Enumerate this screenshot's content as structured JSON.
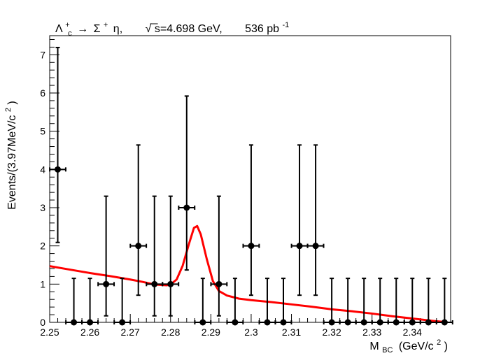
{
  "chart_data": {
    "type": "scatter",
    "title": {
      "lambda": "Λ",
      "lambda_sup": "+",
      "lambda_sub": "c",
      "arrow": "→",
      "sigma": "Σ",
      "sigma_sup": "+",
      "eta": "η,",
      "sqrt": "√",
      "energy": "s=4.698 GeV,",
      "lumi": "536 pb",
      "lumi_sup": "-1"
    },
    "xlabel": {
      "main": "M",
      "sub": "BC",
      "unit": "(GeV/c",
      "unit_sup": "2",
      "unit_close": ")"
    },
    "ylabel": {
      "main": "Events/(3.97MeV/c",
      "sup": "2",
      "close": ")"
    },
    "xlim": [
      2.25,
      2.3495
    ],
    "ylim": [
      0,
      7.5
    ],
    "bin_width": 0.00397,
    "x_ticks": [
      "2.25",
      "2.26",
      "2.27",
      "2.28",
      "2.29",
      "2.3",
      "2.31",
      "2.32",
      "2.33",
      "2.34"
    ],
    "x_tick_values": [
      2.25,
      2.26,
      2.27,
      2.28,
      2.29,
      2.3,
      2.31,
      2.32,
      2.33,
      2.34
    ],
    "y_ticks": [
      "0",
      "1",
      "2",
      "3",
      "4",
      "5",
      "6",
      "7"
    ],
    "y_tick_values": [
      0,
      1,
      2,
      3,
      4,
      5,
      6,
      7
    ],
    "data_color": "#000000",
    "fit_color": "#ff0000",
    "points": [
      {
        "x": 2.252,
        "y": 4,
        "ylow": 2.09,
        "yhigh": 7.19
      },
      {
        "x": 2.256,
        "y": 0,
        "ylow": 0,
        "yhigh": 1.15
      },
      {
        "x": 2.26,
        "y": 0,
        "ylow": 0,
        "yhigh": 1.15
      },
      {
        "x": 2.264,
        "y": 1,
        "ylow": 0.17,
        "yhigh": 3.3
      },
      {
        "x": 2.268,
        "y": 0,
        "ylow": 0,
        "yhigh": 1.15
      },
      {
        "x": 2.272,
        "y": 2,
        "ylow": 0.71,
        "yhigh": 4.64
      },
      {
        "x": 2.276,
        "y": 1,
        "ylow": 0.17,
        "yhigh": 3.3
      },
      {
        "x": 2.28,
        "y": 1,
        "ylow": 0.17,
        "yhigh": 3.3
      },
      {
        "x": 2.284,
        "y": 3,
        "ylow": 1.37,
        "yhigh": 5.92
      },
      {
        "x": 2.288,
        "y": 0,
        "ylow": 0,
        "yhigh": 1.15
      },
      {
        "x": 2.292,
        "y": 1,
        "ylow": 0.17,
        "yhigh": 3.3
      },
      {
        "x": 2.296,
        "y": 0,
        "ylow": 0,
        "yhigh": 1.15
      },
      {
        "x": 2.3,
        "y": 2,
        "ylow": 0.71,
        "yhigh": 4.64
      },
      {
        "x": 2.304,
        "y": 0,
        "ylow": 0,
        "yhigh": 1.15
      },
      {
        "x": 2.308,
        "y": 0,
        "ylow": 0,
        "yhigh": 1.15
      },
      {
        "x": 2.312,
        "y": 2,
        "ylow": 0.71,
        "yhigh": 4.64
      },
      {
        "x": 2.316,
        "y": 2,
        "ylow": 0.71,
        "yhigh": 4.64
      },
      {
        "x": 2.32,
        "y": 0,
        "ylow": 0,
        "yhigh": 1.15
      },
      {
        "x": 2.324,
        "y": 0,
        "ylow": 0,
        "yhigh": 1.15
      },
      {
        "x": 2.328,
        "y": 0,
        "ylow": 0,
        "yhigh": 1.15
      },
      {
        "x": 2.332,
        "y": 0,
        "ylow": 0,
        "yhigh": 1.15
      },
      {
        "x": 2.336,
        "y": 0,
        "ylow": 0,
        "yhigh": 1.15
      },
      {
        "x": 2.34,
        "y": 0,
        "ylow": 0,
        "yhigh": 1.15
      },
      {
        "x": 2.344,
        "y": 0,
        "ylow": 0,
        "yhigh": 1.15
      },
      {
        "x": 2.348,
        "y": 0,
        "ylow": 0,
        "yhigh": 1.15
      }
    ],
    "fit_curve": [
      [
        2.25,
        1.47
      ],
      [
        2.255,
        1.38
      ],
      [
        2.26,
        1.29
      ],
      [
        2.265,
        1.21
      ],
      [
        2.27,
        1.12
      ],
      [
        2.273,
        1.06
      ],
      [
        2.276,
        0.99
      ],
      [
        2.279,
        0.97
      ],
      [
        2.28,
        0.99
      ],
      [
        2.2815,
        1.12
      ],
      [
        2.283,
        1.48
      ],
      [
        2.2845,
        2.03
      ],
      [
        2.2858,
        2.47
      ],
      [
        2.2866,
        2.52
      ],
      [
        2.2875,
        2.3
      ],
      [
        2.289,
        1.65
      ],
      [
        2.2905,
        1.08
      ],
      [
        2.292,
        0.82
      ],
      [
        2.294,
        0.7
      ],
      [
        2.297,
        0.62
      ],
      [
        2.3,
        0.58
      ],
      [
        2.305,
        0.53
      ],
      [
        2.31,
        0.47
      ],
      [
        2.315,
        0.41
      ],
      [
        2.32,
        0.34
      ],
      [
        2.325,
        0.29
      ],
      [
        2.33,
        0.23
      ],
      [
        2.335,
        0.16
      ],
      [
        2.34,
        0.1
      ],
      [
        2.345,
        0.04
      ],
      [
        2.348,
        0.01
      ]
    ]
  }
}
